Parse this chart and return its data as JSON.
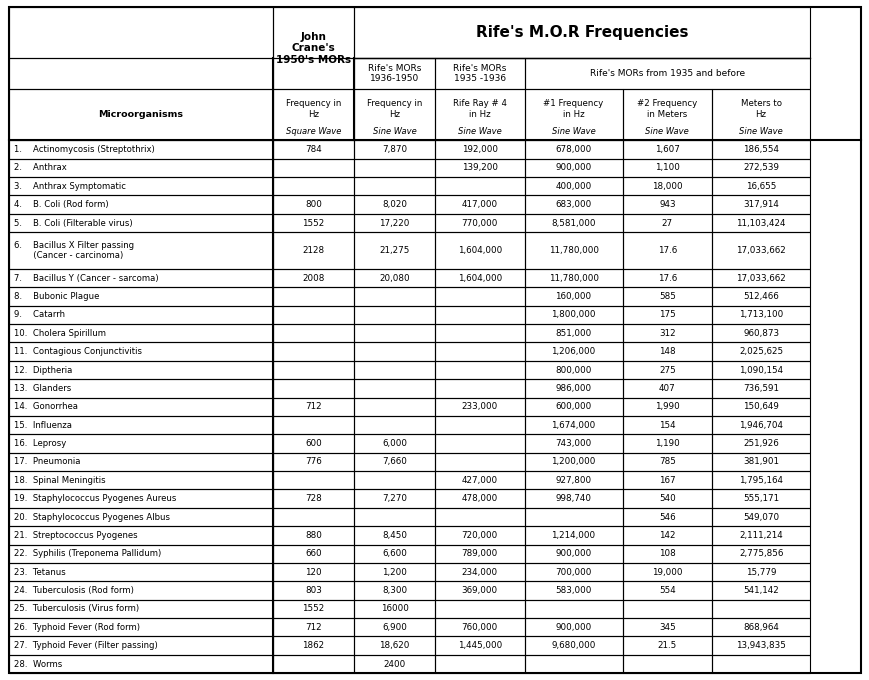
{
  "title": "Rife's M.O.R Frequencies",
  "col_headers": [
    [
      "",
      "John\nCrane's\n1950's MORs",
      "Rife's MORs\n1936-1950",
      "Rife's MORs\n1935 -1936",
      "Rife's MORs from 1935 and before",
      "",
      ""
    ],
    [
      "Microorganisms",
      "Frequency in\nHz\nSquare Wave",
      "Frequency in\nHz\nSine Wave",
      "Rife Ray # 4\nin Hz\nSine Wave",
      "#1 Frequency\nin Hz\nSine Wave",
      "#2 Frequency\nin Meters\nSine Wave",
      "Meters to\nHz\nSine Wave"
    ]
  ],
  "rows": [
    [
      "1.    Actinomycosis (Streptothrix)",
      "784",
      "7,870",
      "192,000",
      "678,000",
      "1,607",
      "186,554"
    ],
    [
      "2.    Anthrax",
      "",
      "",
      "139,200",
      "900,000",
      "1,100",
      "272,539"
    ],
    [
      "3.    Anthrax Symptomatic",
      "",
      "",
      "",
      "400,000",
      "18,000",
      "16,655"
    ],
    [
      "4.    B. Coli (Rod form)",
      "800",
      "8,020",
      "417,000",
      "683,000",
      "943",
      "317,914"
    ],
    [
      "5.    B. Coli (Filterable virus)",
      "1552",
      "17,220",
      "770,000",
      "8,581,000",
      "27",
      "11,103,424"
    ],
    [
      "6.    Bacillus X Filter passing\n       (Cancer - carcinoma)",
      "2128",
      "21,275",
      "1,604,000",
      "11,780,000",
      "17.6",
      "17,033,662"
    ],
    [
      "7.    Bacillus Y (Cancer - sarcoma)",
      "2008",
      "20,080",
      "1,604,000",
      "11,780,000",
      "17.6",
      "17,033,662"
    ],
    [
      "8.    Bubonic Plague",
      "",
      "",
      "",
      "160,000",
      "585",
      "512,466"
    ],
    [
      "9.    Catarrh",
      "",
      "",
      "",
      "1,800,000",
      "175",
      "1,713,100"
    ],
    [
      "10.  Cholera Spirillum",
      "",
      "",
      "",
      "851,000",
      "312",
      "960,873"
    ],
    [
      "11.  Contagious Conjunctivitis",
      "",
      "",
      "",
      "1,206,000",
      "148",
      "2,025,625"
    ],
    [
      "12.  Diptheria",
      "",
      "",
      "",
      "800,000",
      "275",
      "1,090,154"
    ],
    [
      "13.  Glanders",
      "",
      "",
      "",
      "986,000",
      "407",
      "736,591"
    ],
    [
      "14.  Gonorrhea",
      "712",
      "",
      "233,000",
      "600,000",
      "1,990",
      "150,649"
    ],
    [
      "15.  Influenza",
      "",
      "",
      "",
      "1,674,000",
      "154",
      "1,946,704"
    ],
    [
      "16.  Leprosy",
      "600",
      "6,000",
      "",
      "743,000",
      "1,190",
      "251,926"
    ],
    [
      "17.  Pneumonia",
      "776",
      "7,660",
      "",
      "1,200,000",
      "785",
      "381,901"
    ],
    [
      "18.  Spinal Meningitis",
      "",
      "",
      "427,000",
      "927,800",
      "167",
      "1,795,164"
    ],
    [
      "19.  Staphylococcus Pyogenes Aureus",
      "728",
      "7,270",
      "478,000",
      "998,740",
      "540",
      "555,171"
    ],
    [
      "20.  Staphylococcus Pyogenes Albus",
      "",
      "",
      "",
      "",
      "546",
      "549,070"
    ],
    [
      "21.  Streptococcus Pyogenes",
      "880",
      "8,450",
      "720,000",
      "1,214,000",
      "142",
      "2,111,214"
    ],
    [
      "22.  Syphilis (Treponema Pallidum)",
      "660",
      "6,600",
      "789,000",
      "900,000",
      "108",
      "2,775,856"
    ],
    [
      "23.  Tetanus",
      "120",
      "1,200",
      "234,000",
      "700,000",
      "19,000",
      "15,779"
    ],
    [
      "24.  Tuberculosis (Rod form)",
      "803",
      "8,300",
      "369,000",
      "583,000",
      "554",
      "541,142"
    ],
    [
      "25.  Tuberculosis (Virus form)",
      "1552",
      "16000",
      "",
      "",
      "",
      ""
    ],
    [
      "26.  Typhoid Fever (Rod form)",
      "712",
      "6,900",
      "760,000",
      "900,000",
      "345",
      "868,964"
    ],
    [
      "27.  Typhoid Fever (Filter passing)",
      "1862",
      "18,620",
      "1,445,000",
      "9,680,000",
      "21.5",
      "13,943,835"
    ],
    [
      "28.  Worms",
      "",
      "2400",
      "",
      "",
      "",
      ""
    ]
  ],
  "bg_color": "#ffffff",
  "border_color": "#000000",
  "header_bg": "#ffffff",
  "text_color": "#000000"
}
